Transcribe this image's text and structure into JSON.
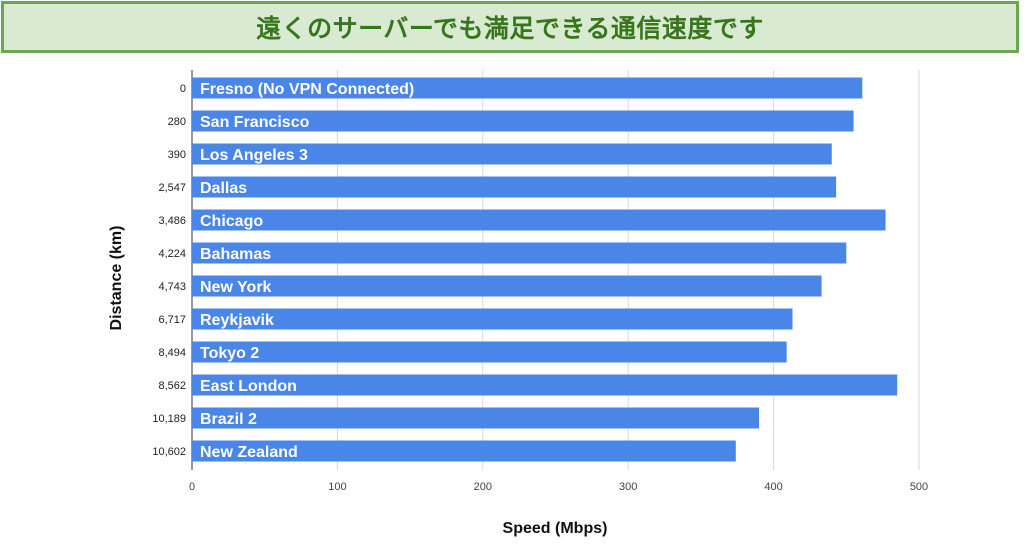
{
  "banner": {
    "title": "遠くのサーバーでも満足できる通信速度です"
  },
  "colors": {
    "banner_bg": "#d9ead3",
    "banner_border": "#6aa84f",
    "banner_text": "#38761d",
    "bar": "#4a86e8",
    "grid": "#d9d9d9"
  },
  "chart_data": {
    "type": "bar",
    "orientation": "horizontal",
    "xlabel": "Speed (Mbps)",
    "ylabel": "Distance (km)",
    "xlim": [
      0,
      500
    ],
    "xticks": [
      0,
      100,
      200,
      300,
      400,
      500
    ],
    "grid": true,
    "legend": "none",
    "categories": [
      "0",
      "280",
      "390",
      "2,547",
      "3,486",
      "4,224",
      "4,743",
      "6,717",
      "8,494",
      "8,562",
      "10,189",
      "10,602"
    ],
    "bar_labels": [
      "Fresno (No VPN Connected)",
      "San Francisco",
      "Los Angeles 3",
      "Dallas",
      "Chicago",
      "Bahamas",
      "New York",
      "Reykjavik",
      "Tokyo 2",
      "East London",
      "Brazil 2",
      "New Zealand"
    ],
    "values": [
      461,
      455,
      440,
      443,
      477,
      450,
      433,
      413,
      409,
      485,
      390,
      374
    ]
  }
}
